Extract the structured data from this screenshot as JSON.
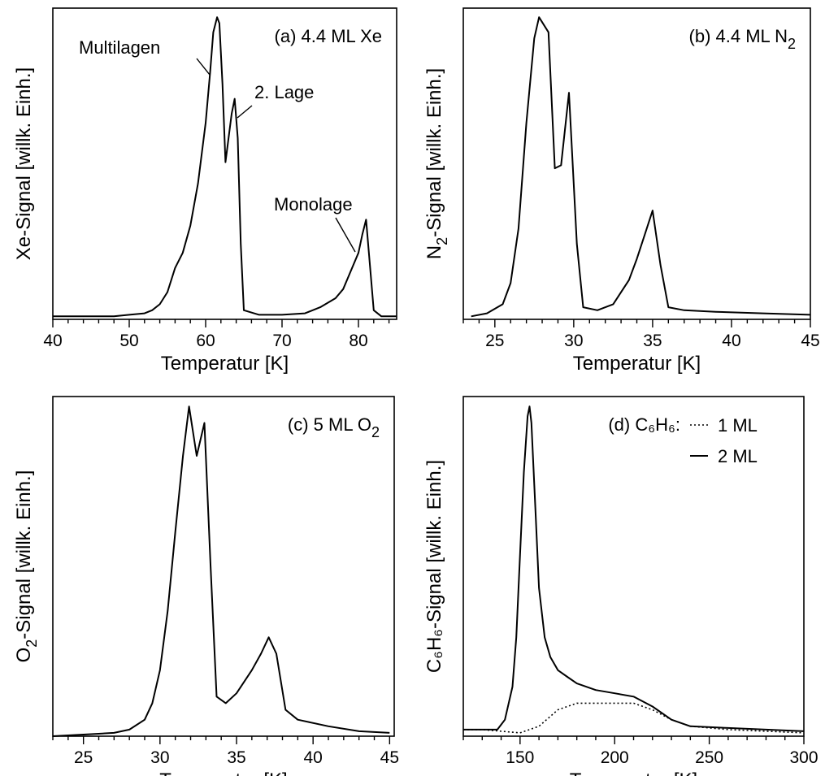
{
  "chart_data": [
    {
      "type": "line",
      "panel_label": "(a) 4.4 ML Xe",
      "xlabel": "Temperatur [K]",
      "ylabel": "Xe-Signal [willk. Einh.]",
      "xlim": [
        40,
        85
      ],
      "xticks": [
        40,
        50,
        60,
        70,
        80
      ],
      "ylim": [
        0,
        1.03
      ],
      "series": [
        {
          "style": "solid",
          "x": [
            40,
            44,
            48,
            50,
            52,
            53,
            54,
            55,
            56,
            57,
            58,
            59,
            60,
            60.6,
            61,
            61.5,
            61.8,
            62.2,
            62.6,
            63.0,
            63.4,
            63.8,
            64.2,
            64.6,
            65,
            67,
            70,
            73,
            75,
            77,
            78,
            79,
            80,
            80.5,
            81,
            81.5,
            82,
            83,
            84,
            85
          ],
          "y": [
            0.01,
            0.01,
            0.01,
            0.015,
            0.02,
            0.03,
            0.05,
            0.09,
            0.17,
            0.22,
            0.31,
            0.45,
            0.65,
            0.82,
            0.95,
            1.0,
            0.98,
            0.78,
            0.52,
            0.6,
            0.68,
            0.73,
            0.6,
            0.25,
            0.03,
            0.015,
            0.015,
            0.02,
            0.04,
            0.07,
            0.1,
            0.16,
            0.22,
            0.28,
            0.33,
            0.18,
            0.03,
            0.01,
            0.01,
            0.01
          ]
        }
      ],
      "annotations": [
        {
          "text": "Multilagen",
          "x": 61.0,
          "y": 0.88
        },
        {
          "text": "2. Lage",
          "x": 63.8,
          "y": 0.72
        },
        {
          "text": "Monolage",
          "x": 80.3,
          "y": 0.28
        }
      ]
    },
    {
      "type": "line",
      "panel_label_main": "(b) 4.4 ML N",
      "panel_label_sub": "2",
      "xlabel": "Temperatur [K]",
      "ylabel_main": "N",
      "ylabel_sub": "2",
      "ylabel_rest": "-Signal [willk. Einh.]",
      "xlim": [
        23,
        45
      ],
      "xticks": [
        25,
        30,
        35,
        40,
        45
      ],
      "ylim": [
        0,
        1.03
      ],
      "series": [
        {
          "style": "solid",
          "x": [
            23.5,
            24.5,
            25.5,
            26.0,
            26.5,
            27.0,
            27.5,
            27.8,
            28.4,
            28.8,
            29.2,
            29.7,
            30.2,
            30.6,
            31.5,
            32.5,
            33.5,
            34.0,
            34.5,
            35.0,
            35.5,
            36.0,
            37,
            39,
            42,
            45
          ],
          "y": [
            0.01,
            0.02,
            0.05,
            0.12,
            0.3,
            0.65,
            0.93,
            1.0,
            0.95,
            0.5,
            0.51,
            0.75,
            0.25,
            0.04,
            0.03,
            0.05,
            0.13,
            0.2,
            0.28,
            0.36,
            0.18,
            0.04,
            0.03,
            0.025,
            0.02,
            0.015
          ]
        }
      ]
    },
    {
      "type": "line",
      "panel_label_main": "(c) 5 ML O",
      "panel_label_sub": "2",
      "xlabel": "Temperatur [K]",
      "ylabel_main": "O",
      "ylabel_sub": "2",
      "ylabel_rest": "-Signal [willk. Einh.]",
      "xlim": [
        23,
        45.3
      ],
      "xticks": [
        25,
        30,
        35,
        40,
        45
      ],
      "ylim": [
        0,
        1.03
      ],
      "series": [
        {
          "style": "solid",
          "x": [
            23,
            25,
            27,
            28,
            29,
            29.5,
            30,
            30.5,
            31,
            31.5,
            31.9,
            32.4,
            32.9,
            33.3,
            33.7,
            34.3,
            35,
            36,
            36.6,
            37.1,
            37.6,
            38.2,
            39,
            41,
            43,
            45
          ],
          "y": [
            0.0,
            0.005,
            0.01,
            0.02,
            0.05,
            0.1,
            0.2,
            0.38,
            0.62,
            0.85,
            1.0,
            0.85,
            0.95,
            0.52,
            0.12,
            0.1,
            0.13,
            0.2,
            0.25,
            0.3,
            0.25,
            0.08,
            0.05,
            0.03,
            0.015,
            0.01
          ]
        }
      ]
    },
    {
      "type": "line",
      "panel_label": "(d) C₆H₆:",
      "xlabel": "Temperatur [K]",
      "ylabel": "C₆H₆-Signal [willk. Einh.]",
      "xlim": [
        120,
        300
      ],
      "xticks": [
        150,
        200,
        250,
        300
      ],
      "ylim": [
        0,
        1.03
      ],
      "series": [
        {
          "name": "1 ML",
          "style": "dotted",
          "x": [
            120,
            130,
            140,
            150,
            160,
            170,
            180,
            190,
            200,
            210,
            220,
            230,
            240,
            260,
            280,
            300
          ],
          "y": [
            0.02,
            0.02,
            0.015,
            0.01,
            0.03,
            0.08,
            0.1,
            0.1,
            0.1,
            0.1,
            0.08,
            0.05,
            0.03,
            0.02,
            0.015,
            0.01
          ]
        },
        {
          "name": "2 ML",
          "style": "solid",
          "x": [
            120,
            130,
            138,
            142,
            146,
            148,
            150,
            152,
            154,
            155,
            156,
            158,
            160,
            163,
            166,
            170,
            175,
            180,
            190,
            200,
            210,
            220,
            230,
            240,
            260,
            280,
            300
          ],
          "y": [
            0.02,
            0.02,
            0.02,
            0.05,
            0.15,
            0.3,
            0.55,
            0.8,
            0.97,
            1.0,
            0.95,
            0.7,
            0.45,
            0.3,
            0.24,
            0.2,
            0.18,
            0.16,
            0.14,
            0.13,
            0.12,
            0.09,
            0.05,
            0.03,
            0.025,
            0.02,
            0.015
          ]
        }
      ]
    }
  ]
}
